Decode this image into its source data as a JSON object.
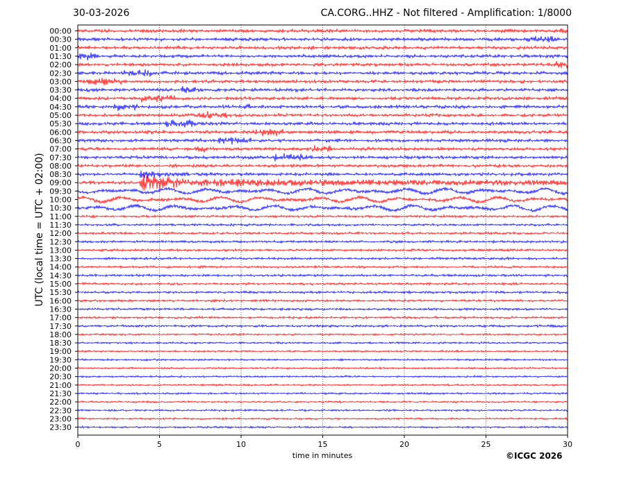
{
  "header": {
    "date": "30-03-2026",
    "title": "CA.CORG..HHZ - Not filtered - Amplification: 1/8000"
  },
  "footer": {
    "copyright": "©ICGC 2026"
  },
  "chart_data": {
    "type": "line",
    "title": "CA.CORG..HHZ - Not filtered - Amplification: 1/8000",
    "xlabel": "time in minutes",
    "ylabel": "UTC (local time = UTC + 02:00)",
    "xlim": [
      0,
      30
    ],
    "x_ticks": [
      "0",
      "5",
      "10",
      "15",
      "20",
      "25",
      "30"
    ],
    "grid": "vertical dotted lines at 5-minute intervals",
    "colors": {
      "even_rows": "#ff0000",
      "odd_rows": "#0000ff"
    },
    "rows": [
      "00:00",
      "00:30",
      "01:00",
      "01:30",
      "02:00",
      "02:30",
      "03:00",
      "03:30",
      "04:00",
      "04:30",
      "05:00",
      "05:30",
      "06:00",
      "06:30",
      "07:00",
      "07:30",
      "08:00",
      "08:30",
      "09:00",
      "09:30",
      "10:00",
      "10:30",
      "11:00",
      "11:30",
      "12:00",
      "12:30",
      "13:00",
      "13:30",
      "14:00",
      "14:30",
      "15:00",
      "15:30",
      "16:00",
      "16:30",
      "17:00",
      "17:30",
      "18:00",
      "18:30",
      "19:00",
      "19:30",
      "20:00",
      "20:30",
      "21:00",
      "21:30",
      "22:00",
      "22:30",
      "23:00",
      "23:30"
    ],
    "event": {
      "row": "09:00",
      "onset_minute": 3.8,
      "shaking_until_row": "10:30"
    }
  }
}
